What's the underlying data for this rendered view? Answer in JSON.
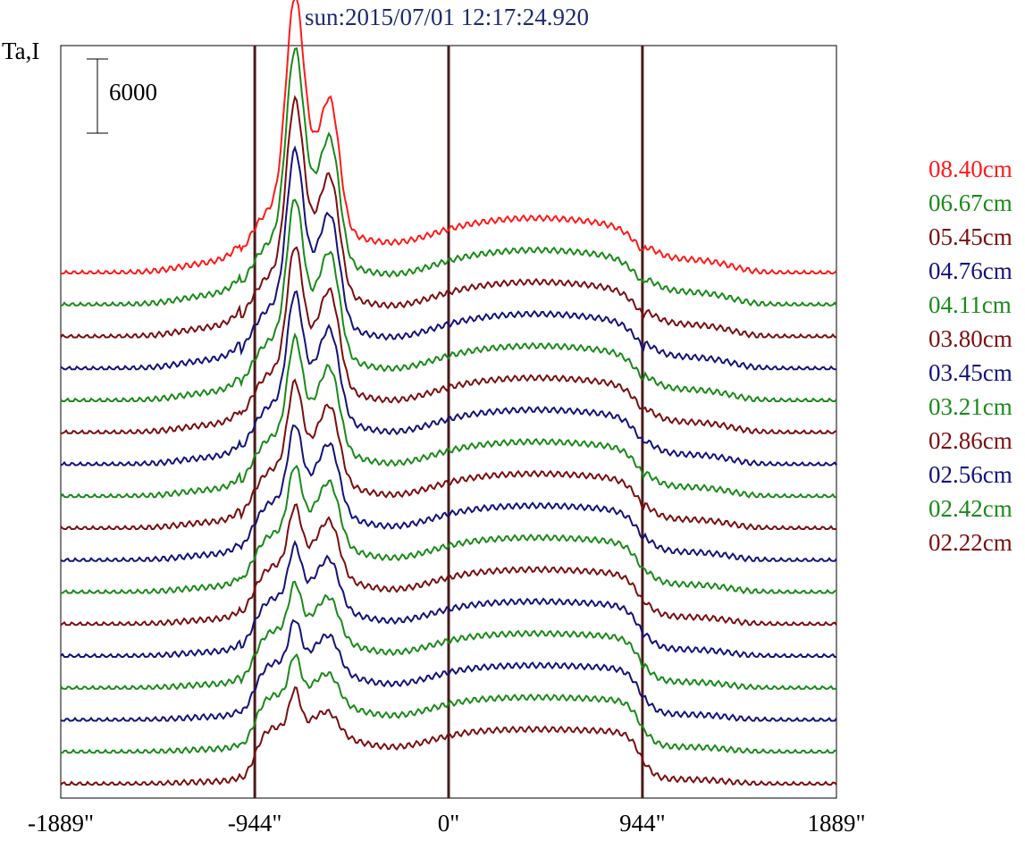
{
  "chart_data": {
    "type": "line",
    "title": "sun:2015/07/01 12:17:24.920",
    "ylabel": "Ta,I",
    "scale_bar": "6000",
    "x_ticks": [
      "-1889\"",
      "-944\"",
      "0\"",
      "944\"",
      "1889\""
    ],
    "x_tick_values": [
      -1889,
      -944,
      0,
      944,
      1889
    ],
    "xlim": [
      -1889,
      1889
    ],
    "vertical_lines": [
      -944,
      0,
      944
    ],
    "series": [
      {
        "name": "08.40cm",
        "color": "#ff1a1a"
      },
      {
        "name": "06.67cm",
        "color": "#1a8a1a"
      },
      {
        "name": "05.45cm",
        "color": "#7a0f0f"
      },
      {
        "name": "04.76cm",
        "color": "#13137a"
      },
      {
        "name": "04.11cm",
        "color": "#1a8a1a"
      },
      {
        "name": "03.80cm",
        "color": "#7a0f0f"
      },
      {
        "name": "03.45cm",
        "color": "#13137a"
      },
      {
        "name": "03.21cm",
        "color": "#1a8a1a"
      },
      {
        "name": "02.86cm",
        "color": "#7a0f0f"
      },
      {
        "name": "02.56cm",
        "color": "#13137a"
      },
      {
        "name": "02.42cm",
        "color": "#1a8a1a"
      },
      {
        "name": "02.22cm",
        "color": "#7a0f0f"
      },
      {
        "color": "#13137a"
      },
      {
        "color": "#1a8a1a"
      },
      {
        "color": "#13137a"
      },
      {
        "color": "#1a8a1a"
      },
      {
        "color": "#7a0f0f"
      }
    ]
  }
}
